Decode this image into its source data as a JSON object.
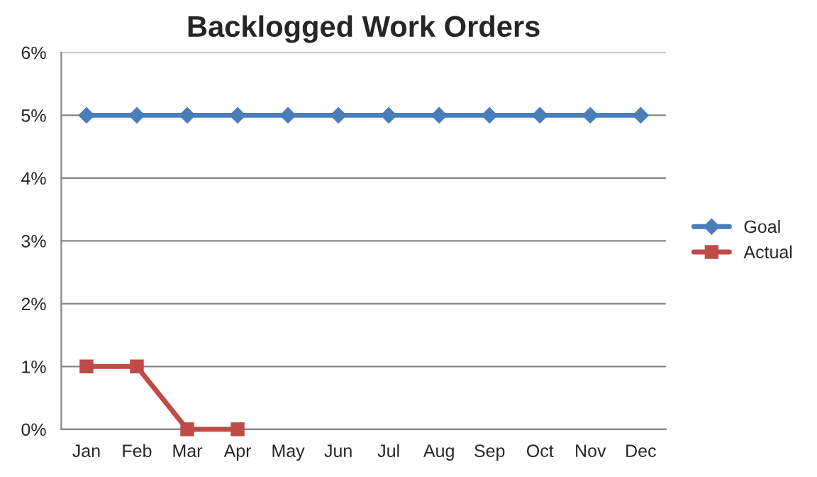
{
  "chart_data": {
    "type": "line",
    "title": "Backlogged Work Orders",
    "categories": [
      "Jan",
      "Feb",
      "Mar",
      "Apr",
      "May",
      "Jun",
      "Jul",
      "Aug",
      "Sep",
      "Oct",
      "Nov",
      "Dec"
    ],
    "series": [
      {
        "name": "Goal",
        "color": "#4a7ebb",
        "marker": "diamond",
        "values": [
          5,
          5,
          5,
          5,
          5,
          5,
          5,
          5,
          5,
          5,
          5,
          5
        ]
      },
      {
        "name": "Actual",
        "color": "#be4b48",
        "marker": "square",
        "values": [
          1,
          1,
          0,
          0,
          null,
          null,
          null,
          null,
          null,
          null,
          null,
          null
        ]
      }
    ],
    "ylim": [
      0,
      6
    ],
    "yticks": [
      {
        "value": 0,
        "label": "0%"
      },
      {
        "value": 1,
        "label": "1%"
      },
      {
        "value": 2,
        "label": "2%"
      },
      {
        "value": 3,
        "label": "3%"
      },
      {
        "value": 4,
        "label": "4%"
      },
      {
        "value": 5,
        "label": "5%"
      },
      {
        "value": 6,
        "label": "6%"
      }
    ],
    "grid": "y",
    "legend": "right",
    "line_style": "solid"
  }
}
